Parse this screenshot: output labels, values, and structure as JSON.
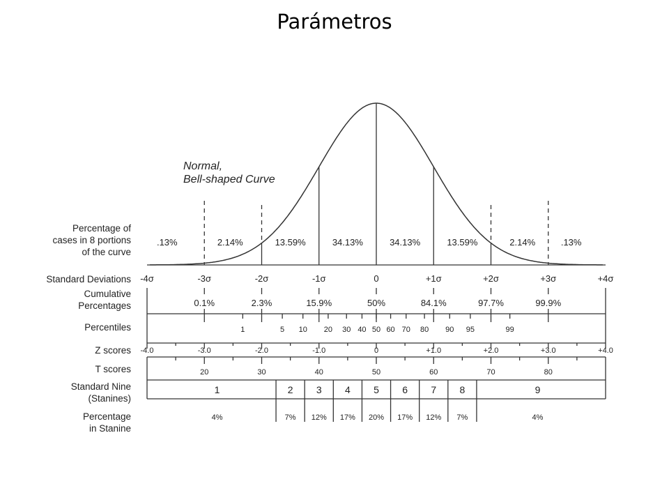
{
  "slide_title": "Parámetros",
  "curve_label": [
    "Normal,",
    "Bell-shaped Curve"
  ],
  "row_labels": {
    "percentage_cases": [
      "Percentage of",
      "cases in 8 portions",
      "of the curve"
    ],
    "standard_deviations": [
      "Standard Deviations"
    ],
    "cumulative": [
      "Cumulative",
      "Percentages"
    ],
    "percentiles": [
      "Percentiles"
    ],
    "z_scores": [
      "Z scores"
    ],
    "t_scores": [
      "T scores"
    ],
    "stanines": [
      "Standard Nine",
      "(Stanines)"
    ],
    "stanine_pct": [
      "Percentage",
      "in Stanine"
    ]
  },
  "portion_percentages": [
    ".13%",
    "2.14%",
    "13.59%",
    "34.13%",
    "34.13%",
    "13.59%",
    "2.14%",
    ".13%"
  ],
  "sd_labels": [
    "-4σ",
    "-3σ",
    "-2σ",
    "-1σ",
    "0",
    "+1σ",
    "+2σ",
    "+3σ",
    "+4σ"
  ],
  "cumulative_percentages": [
    {
      "z": -3,
      "label": "0.1%"
    },
    {
      "z": -2,
      "label": "2.3%"
    },
    {
      "z": -1,
      "label": "15.9%"
    },
    {
      "z": 0,
      "label": "50%"
    },
    {
      "z": 1,
      "label": "84.1%"
    },
    {
      "z": 2,
      "label": "97.7%"
    },
    {
      "z": 3,
      "label": "99.9%"
    }
  ],
  "percentiles": [
    {
      "z": -2.33,
      "label": "1"
    },
    {
      "z": -1.64,
      "label": "5"
    },
    {
      "z": -1.28,
      "label": "10"
    },
    {
      "z": -0.84,
      "label": "20"
    },
    {
      "z": -0.52,
      "label": "30"
    },
    {
      "z": -0.25,
      "label": "40"
    },
    {
      "z": 0,
      "label": "50"
    },
    {
      "z": 0.25,
      "label": "60"
    },
    {
      "z": 0.52,
      "label": "70"
    },
    {
      "z": 0.84,
      "label": "80"
    },
    {
      "z": 1.28,
      "label": "90"
    },
    {
      "z": 1.64,
      "label": "95"
    },
    {
      "z": 2.33,
      "label": "99"
    }
  ],
  "z_scores": [
    "-4.0",
    "-3.0",
    "-2.0",
    "-1.0",
    "0",
    "+1.0",
    "+2.0",
    "+3.0",
    "+4.0"
  ],
  "t_scores": [
    {
      "z": -3,
      "label": "20"
    },
    {
      "z": -2,
      "label": "30"
    },
    {
      "z": -1,
      "label": "40"
    },
    {
      "z": 0,
      "label": "50"
    },
    {
      "z": 1,
      "label": "60"
    },
    {
      "z": 2,
      "label": "70"
    },
    {
      "z": 3,
      "label": "80"
    }
  ],
  "stanines": [
    {
      "label": "1",
      "from": -4,
      "to": -1.75
    },
    {
      "label": "2",
      "from": -1.75,
      "to": -1.25
    },
    {
      "label": "3",
      "from": -1.25,
      "to": -0.75
    },
    {
      "label": "4",
      "from": -0.75,
      "to": -0.25
    },
    {
      "label": "5",
      "from": -0.25,
      "to": 0.25
    },
    {
      "label": "6",
      "from": 0.25,
      "to": 0.75
    },
    {
      "label": "7",
      "from": 0.75,
      "to": 1.25
    },
    {
      "label": "8",
      "from": 1.25,
      "to": 1.75
    },
    {
      "label": "9",
      "from": 1.75,
      "to": 4
    }
  ],
  "stanine_percentages": [
    "4%",
    "7%",
    "12%",
    "17%",
    "20%",
    "17%",
    "12%",
    "7%",
    "4%"
  ],
  "colors": {
    "line": "#333333",
    "text": "#222222"
  }
}
